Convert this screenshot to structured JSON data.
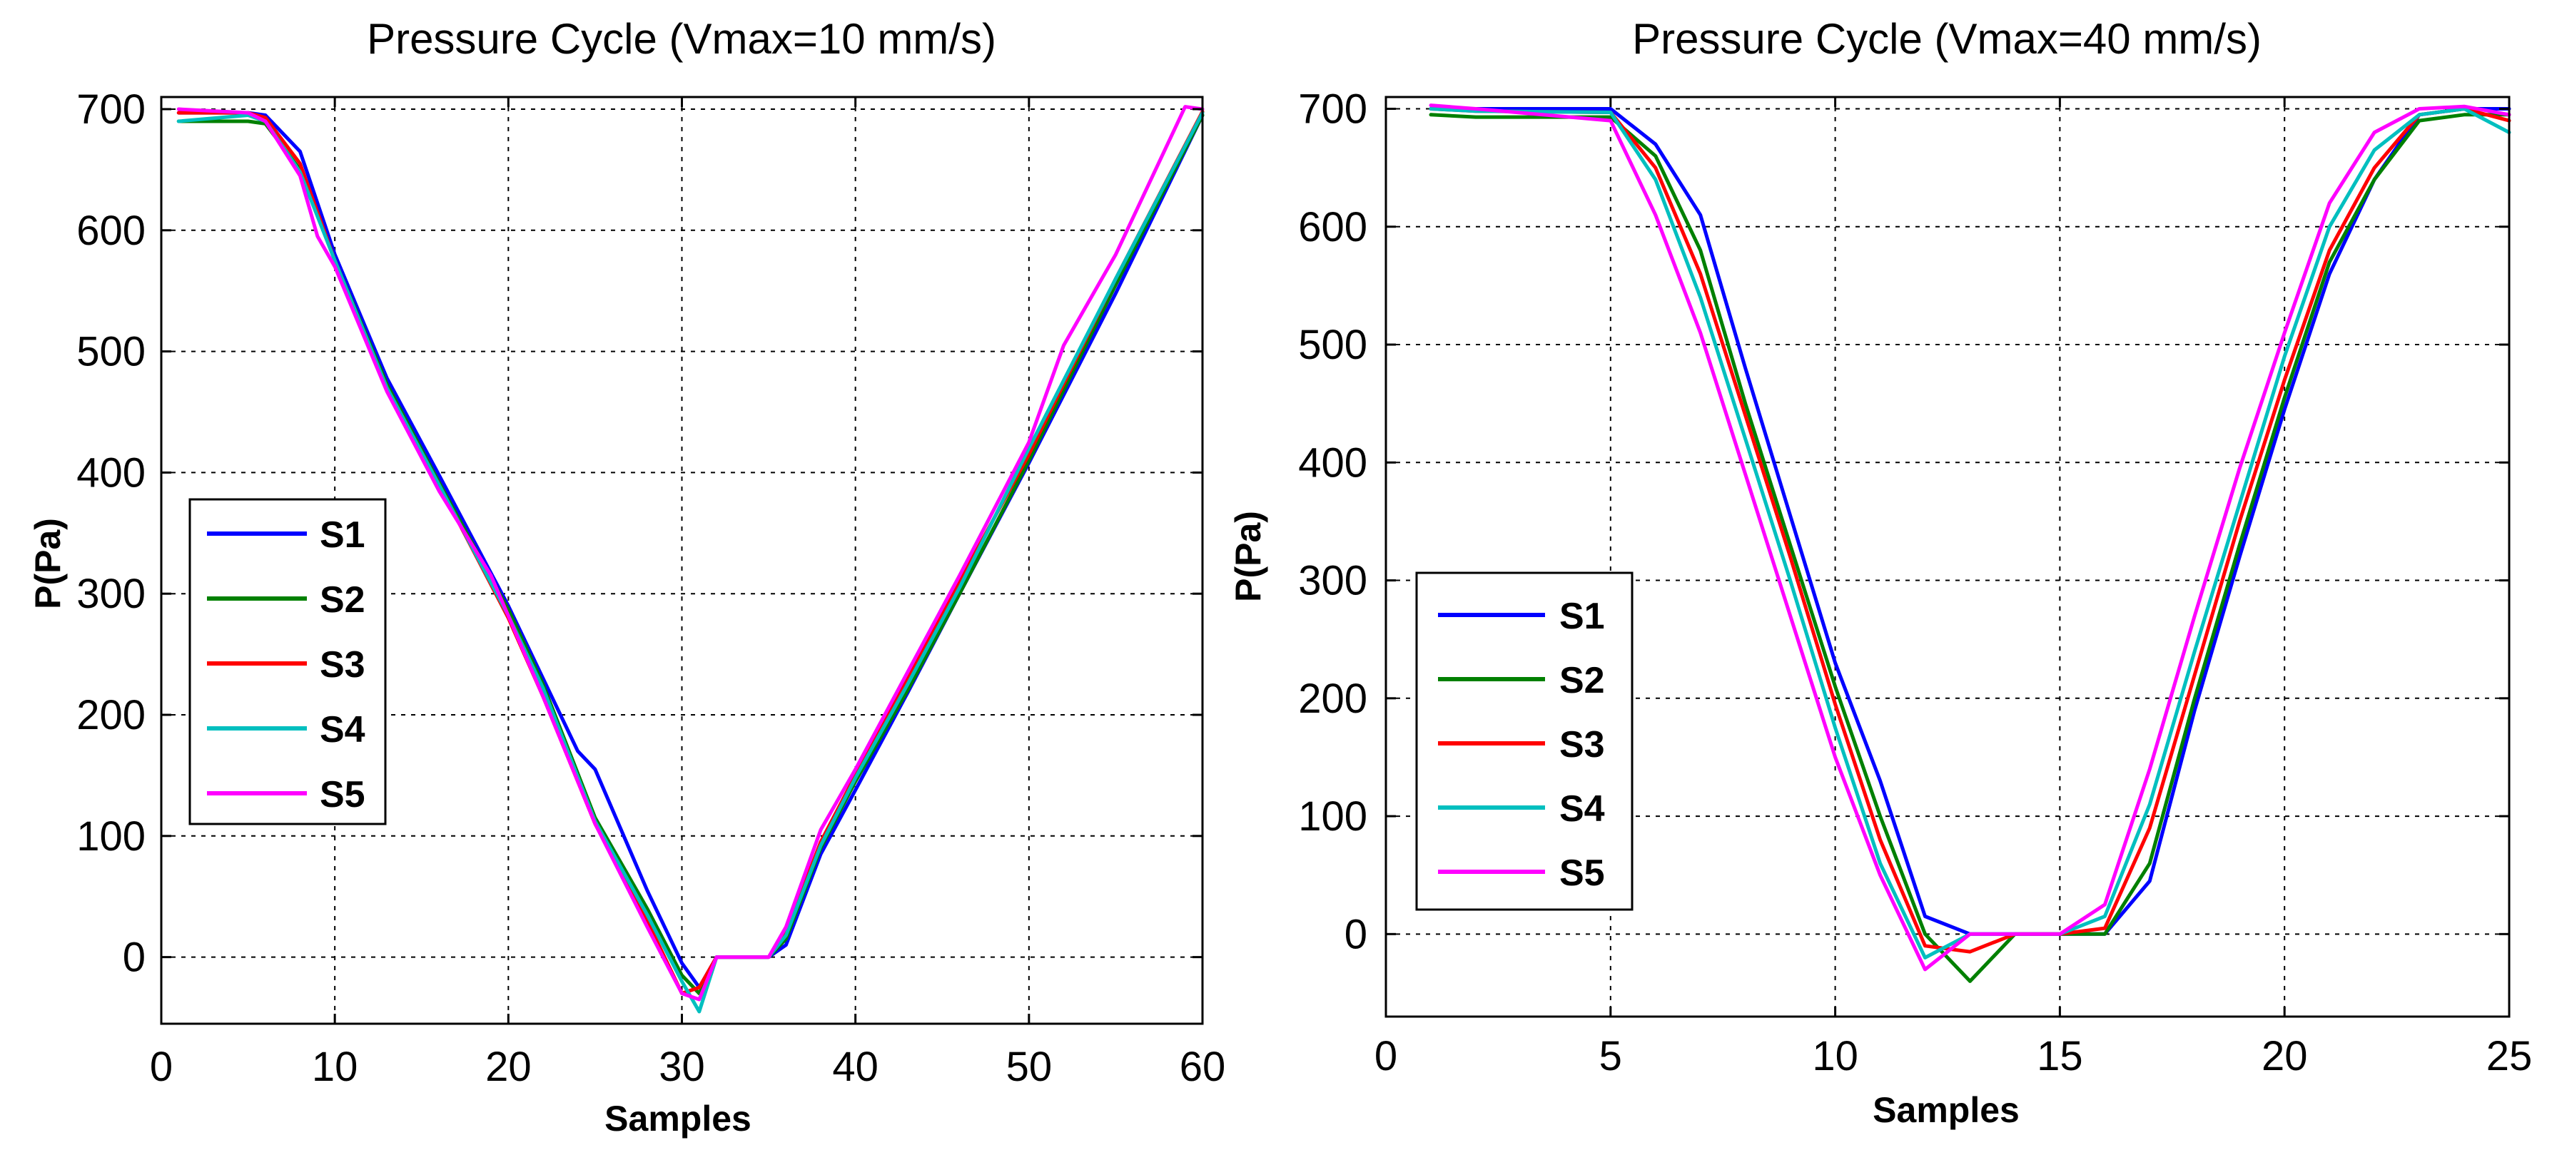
{
  "chart_data": [
    {
      "type": "line",
      "title": "Pressure Cycle (Vmax=10 mm/s)",
      "xlabel": "Samples",
      "ylabel": "P(Pa)",
      "xlim": [
        0,
        60
      ],
      "ylim": [
        -55,
        710
      ],
      "xticks": [
        0,
        10,
        20,
        30,
        40,
        50,
        60
      ],
      "yticks": [
        0,
        100,
        200,
        300,
        400,
        500,
        600,
        700
      ],
      "grid": true,
      "legend_location": "center-left",
      "series": [
        {
          "name": "S1",
          "color": "#0000ff",
          "x": [
            1,
            5,
            6,
            8,
            10,
            13,
            16,
            20,
            22,
            24,
            25,
            28,
            30,
            31,
            32,
            35,
            36,
            38,
            40,
            43,
            46,
            50,
            55,
            60
          ],
          "y": [
            697,
            697,
            695,
            665,
            580,
            478,
            398,
            290,
            230,
            170,
            155,
            55,
            -5,
            -25,
            0,
            0,
            10,
            85,
            138,
            218,
            300,
            408,
            548,
            695
          ]
        },
        {
          "name": "S2",
          "color": "#008000",
          "x": [
            1,
            5,
            6,
            8,
            10,
            13,
            16,
            20,
            22,
            25,
            28,
            30,
            31,
            32,
            35,
            36,
            38,
            40,
            43,
            46,
            50,
            55,
            60
          ],
          "y": [
            690,
            690,
            688,
            650,
            575,
            473,
            392,
            287,
            225,
            115,
            40,
            -15,
            -30,
            0,
            0,
            15,
            90,
            145,
            220,
            300,
            410,
            555,
            695
          ]
        },
        {
          "name": "S3",
          "color": "#ff0000",
          "x": [
            1,
            5,
            6,
            8,
            10,
            13,
            16,
            20,
            22,
            25,
            28,
            30,
            31,
            32,
            35,
            36,
            38,
            40,
            43,
            46,
            50,
            55,
            60
          ],
          "y": [
            697,
            697,
            693,
            655,
            575,
            470,
            390,
            280,
            215,
            110,
            30,
            -30,
            -25,
            0,
            0,
            20,
            95,
            150,
            230,
            310,
            415,
            560,
            698
          ]
        },
        {
          "name": "S4",
          "color": "#00bfbf",
          "x": [
            1,
            5,
            6,
            8,
            10,
            13,
            16,
            20,
            22,
            25,
            28,
            30,
            31,
            32,
            35,
            36,
            38,
            40,
            43,
            46,
            50,
            55,
            60
          ],
          "y": [
            690,
            695,
            690,
            648,
            575,
            470,
            390,
            282,
            222,
            112,
            35,
            -20,
            -45,
            0,
            0,
            18,
            92,
            148,
            225,
            305,
            420,
            560,
            697
          ]
        },
        {
          "name": "S5",
          "color": "#ff00ff",
          "x": [
            1,
            5,
            6,
            8,
            9,
            10,
            13,
            16,
            19,
            22,
            25,
            28,
            30,
            31,
            32,
            35,
            36,
            38,
            40,
            43,
            46,
            50,
            52,
            55,
            59,
            60
          ],
          "y": [
            700,
            697,
            690,
            645,
            595,
            570,
            467,
            385,
            315,
            215,
            110,
            25,
            -30,
            -35,
            0,
            0,
            25,
            105,
            155,
            235,
            315,
            425,
            505,
            580,
            702,
            700
          ]
        }
      ]
    },
    {
      "type": "line",
      "title": "Pressure Cycle (Vmax=40 mm/s)",
      "xlabel": "Samples",
      "ylabel": "P(Pa)",
      "xlim": [
        0,
        25
      ],
      "ylim": [
        -70,
        710
      ],
      "xticks": [
        0,
        5,
        10,
        15,
        20,
        25
      ],
      "yticks": [
        0,
        100,
        200,
        300,
        400,
        500,
        600,
        700
      ],
      "grid": true,
      "legend_location": "center-left",
      "series": [
        {
          "name": "S1",
          "color": "#0000ff",
          "x": [
            1,
            2,
            5,
            6,
            7,
            8,
            9,
            10,
            11,
            12,
            13,
            14,
            15,
            16,
            17,
            18,
            19,
            20,
            21,
            22,
            23,
            24,
            25
          ],
          "y": [
            700,
            700,
            700,
            670,
            610,
            480,
            355,
            230,
            130,
            15,
            0,
            0,
            0,
            0,
            45,
            190,
            320,
            445,
            560,
            640,
            695,
            700,
            700
          ]
        },
        {
          "name": "S2",
          "color": "#008000",
          "x": [
            1,
            2,
            5,
            6,
            7,
            8,
            9,
            10,
            11,
            12,
            13,
            14,
            15,
            16,
            17,
            18,
            19,
            20,
            21,
            22,
            23,
            24,
            25
          ],
          "y": [
            695,
            693,
            693,
            660,
            580,
            450,
            330,
            210,
            100,
            0,
            -40,
            0,
            0,
            0,
            60,
            200,
            330,
            455,
            570,
            640,
            690,
            695,
            695
          ]
        },
        {
          "name": "S3",
          "color": "#ff0000",
          "x": [
            1,
            2,
            5,
            6,
            7,
            8,
            9,
            10,
            11,
            12,
            13,
            14,
            15,
            16,
            17,
            18,
            19,
            20,
            21,
            22,
            23,
            24,
            25
          ],
          "y": [
            700,
            698,
            697,
            650,
            560,
            440,
            320,
            195,
            80,
            -10,
            -15,
            0,
            0,
            5,
            90,
            220,
            350,
            470,
            580,
            650,
            695,
            700,
            690
          ]
        },
        {
          "name": "S4",
          "color": "#00bfbf",
          "x": [
            1,
            2,
            5,
            6,
            7,
            8,
            9,
            10,
            11,
            12,
            13,
            14,
            15,
            16,
            17,
            18,
            19,
            20,
            21,
            22,
            23,
            24,
            25
          ],
          "y": [
            700,
            698,
            697,
            640,
            540,
            420,
            300,
            175,
            60,
            -20,
            0,
            0,
            0,
            15,
            110,
            240,
            365,
            490,
            600,
            665,
            695,
            700,
            680
          ]
        },
        {
          "name": "S5",
          "color": "#ff00ff",
          "x": [
            1,
            2,
            5,
            6,
            7,
            8,
            9,
            10,
            11,
            12,
            13,
            14,
            15,
            16,
            17,
            18,
            19,
            20,
            21,
            22,
            23,
            24,
            25
          ],
          "y": [
            703,
            700,
            690,
            610,
            510,
            390,
            270,
            150,
            50,
            -30,
            0,
            0,
            0,
            25,
            140,
            270,
            395,
            510,
            620,
            680,
            700,
            702,
            695
          ]
        }
      ]
    }
  ]
}
